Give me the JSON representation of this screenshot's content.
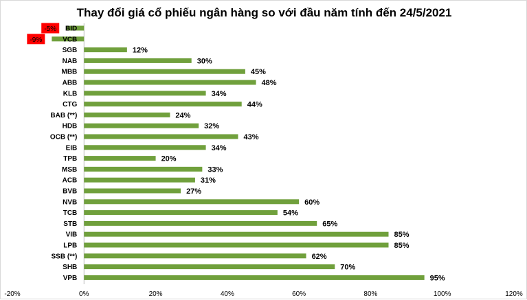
{
  "chart_data": {
    "type": "bar",
    "orientation": "horizontal",
    "title": "Thay đổi giá cổ phiếu ngân hàng so với đầu năm tính đến 24/5/2021",
    "categories": [
      "BID",
      "VCB",
      "SGB",
      "NAB",
      "MBB",
      "ABB",
      "KLB",
      "CTG",
      "BAB (**)",
      "HDB",
      "OCB (**)",
      "EIB",
      "TPB",
      "MSB",
      "ACB",
      "BVB",
      "NVB",
      "TCB",
      "STB",
      "VIB",
      "LPB",
      "SSB (**)",
      "SHB",
      "VPB"
    ],
    "values": [
      -5,
      -9,
      12,
      30,
      45,
      48,
      34,
      44,
      24,
      32,
      43,
      34,
      20,
      33,
      31,
      27,
      60,
      54,
      65,
      85,
      85,
      62,
      70,
      95
    ],
    "value_labels": [
      "-5%",
      "-9%",
      "12%",
      "30%",
      "45%",
      "48%",
      "34%",
      "44%",
      "24%",
      "32%",
      "43%",
      "34%",
      "20%",
      "33%",
      "31%",
      "27%",
      "60%",
      "54%",
      "65%",
      "85%",
      "85%",
      "62%",
      "70%",
      "95%"
    ],
    "x_ticks": [
      "-20%",
      "0%",
      "20%",
      "40%",
      "60%",
      "80%",
      "100%",
      "120%"
    ],
    "xlim": [
      -20,
      120
    ],
    "grid": false,
    "legend": "none",
    "colors": {
      "bar": "#70a03c",
      "negative_label_bg": "#ff0000",
      "axis": "#bfbfbf"
    }
  }
}
